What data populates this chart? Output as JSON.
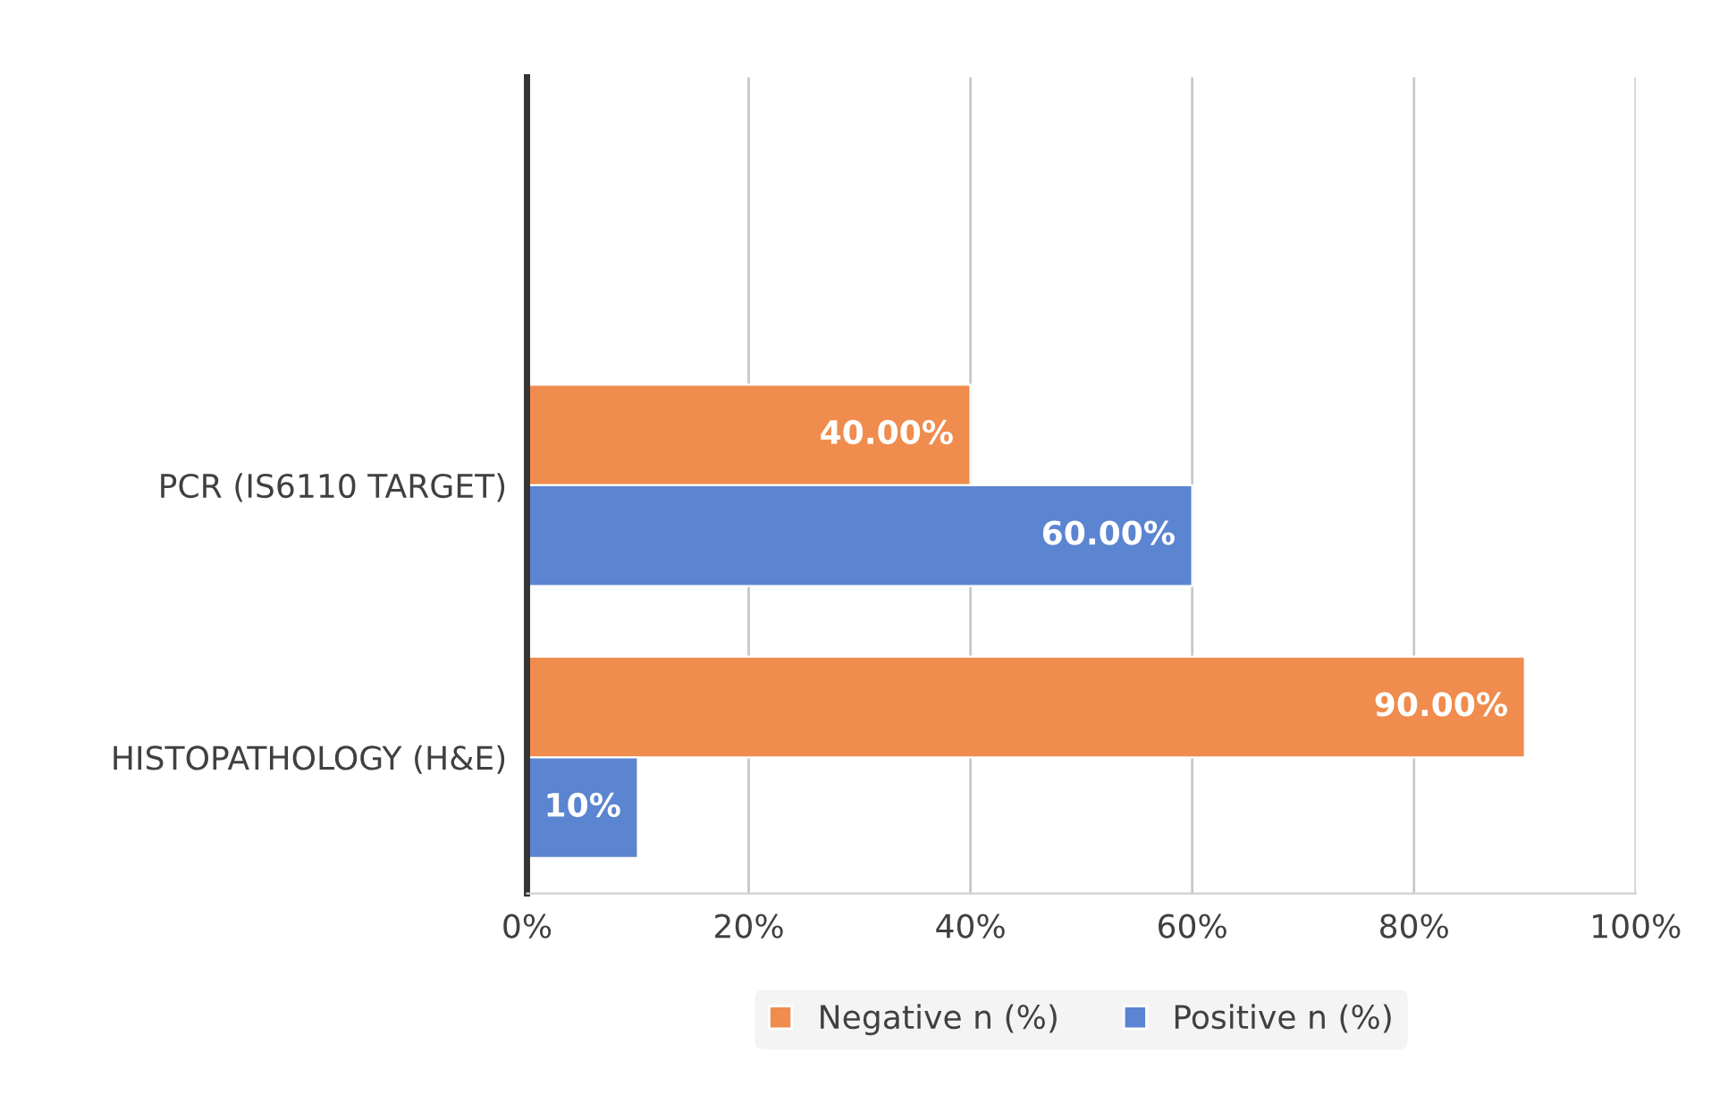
{
  "chart_data": {
    "type": "bar",
    "orientation": "horizontal",
    "categories": [
      null,
      "PCR (IS6110 TARGET)",
      "HISTOPATHOLOGY (H&E)"
    ],
    "series": [
      {
        "name": "Negative n (%)",
        "color": "#ef8c4e",
        "values": [
          null,
          40,
          90
        ],
        "value_labels": [
          null,
          "40.00%",
          "90.00%"
        ]
      },
      {
        "name": "Positive n (%)",
        "color": "#5b84d1",
        "values": [
          null,
          60,
          10
        ],
        "value_labels": [
          null,
          "60.00%",
          "10%"
        ]
      }
    ],
    "xlim": [
      0,
      100
    ],
    "xticks": [
      {
        "value": 0,
        "label": "0%"
      },
      {
        "value": 20,
        "label": "20%"
      },
      {
        "value": 40,
        "label": "40%"
      },
      {
        "value": 60,
        "label": "60%"
      },
      {
        "value": 80,
        "label": "80%"
      },
      {
        "value": 100,
        "label": "100%"
      }
    ],
    "grid": "x",
    "legend": "bottom"
  }
}
